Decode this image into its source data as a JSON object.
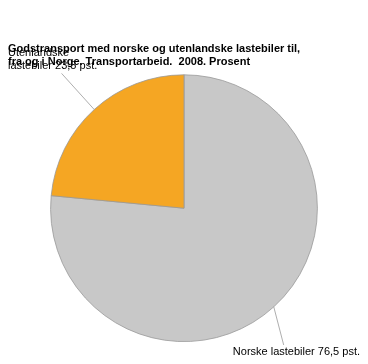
{
  "chart_data": {
    "type": "pie",
    "title": [
      "Godstransport med norske og utenlandske lastebiler til,",
      "fra og i Norge. Transportarbeid.  2008. Prosent"
    ],
    "values": [
      76.5,
      23.5
    ],
    "value_labels": [
      "Norske lastebiler 76,5 pst.",
      "Utenlandske\nlastebiler 23,5 pst."
    ],
    "colors": [
      "#c8c8c8",
      "#f5a623"
    ],
    "data_labels": true
  }
}
